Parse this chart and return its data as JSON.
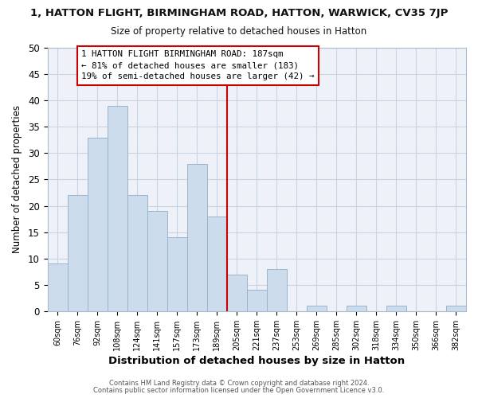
{
  "title_line1": "1, HATTON FLIGHT, BIRMINGHAM ROAD, HATTON, WARWICK, CV35 7JP",
  "title_line2": "Size of property relative to detached houses in Hatton",
  "xlabel": "Distribution of detached houses by size in Hatton",
  "ylabel": "Number of detached properties",
  "bar_labels": [
    "60sqm",
    "76sqm",
    "92sqm",
    "108sqm",
    "124sqm",
    "141sqm",
    "157sqm",
    "173sqm",
    "189sqm",
    "205sqm",
    "221sqm",
    "237sqm",
    "253sqm",
    "269sqm",
    "285sqm",
    "302sqm",
    "318sqm",
    "334sqm",
    "350sqm",
    "366sqm",
    "382sqm"
  ],
  "bar_values": [
    9,
    22,
    33,
    39,
    22,
    19,
    14,
    28,
    18,
    7,
    4,
    8,
    0,
    1,
    0,
    1,
    0,
    1,
    0,
    0,
    1
  ],
  "bar_color": "#cddcec",
  "bar_edge_color": "#9ab4cc",
  "grid_color": "#c8d4e4",
  "reference_line_x": 8,
  "reference_line_color": "#cc0000",
  "annotation_text_line1": "1 HATTON FLIGHT BIRMINGHAM ROAD: 187sqm",
  "annotation_text_line2": "← 81% of detached houses are smaller (183)",
  "annotation_text_line3": "19% of semi-detached houses are larger (42) →",
  "annotation_box_facecolor": "#ffffff",
  "annotation_box_edgecolor": "#cc0000",
  "ylim": [
    0,
    50
  ],
  "yticks": [
    0,
    5,
    10,
    15,
    20,
    25,
    30,
    35,
    40,
    45,
    50
  ],
  "footer_line1": "Contains HM Land Registry data © Crown copyright and database right 2024.",
  "footer_line2": "Contains public sector information licensed under the Open Government Licence v3.0.",
  "background_color": "#ffffff",
  "plot_area_color": "#eef2f8"
}
